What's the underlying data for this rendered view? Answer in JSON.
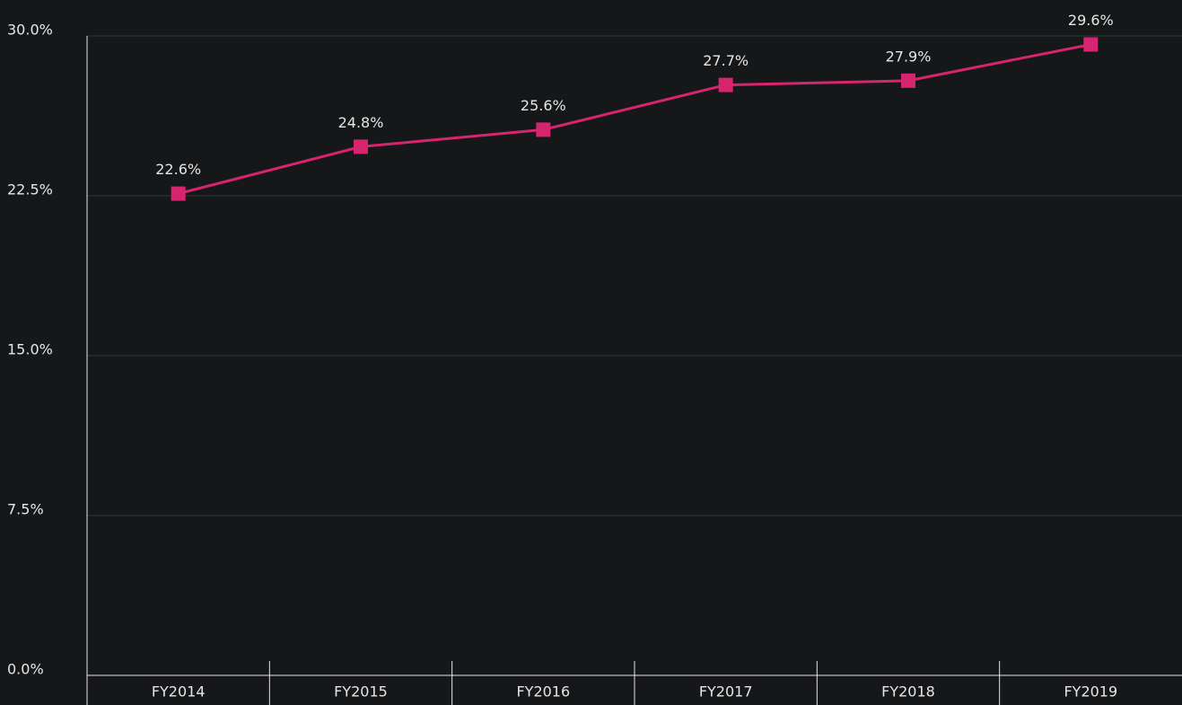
{
  "chart_data": {
    "type": "line",
    "categories": [
      "FY2014",
      "FY2015",
      "FY2016",
      "FY2017",
      "FY2018",
      "FY2019"
    ],
    "series": [
      {
        "color": "#d6246e",
        "values": [
          22.6,
          24.8,
          25.6,
          27.7,
          27.9,
          29.6
        ],
        "value_labels": [
          "22.6%",
          "24.8%",
          "25.6%",
          "27.7%",
          "27.9%",
          "29.6%"
        ]
      }
    ],
    "ylim": [
      0,
      30
    ],
    "yticks": [
      {
        "value": 0,
        "label": "0.0%"
      },
      {
        "value": 7.5,
        "label": "7.5%"
      },
      {
        "value": 15,
        "label": "15.0%"
      },
      {
        "value": 22.5,
        "label": "22.5%"
      },
      {
        "value": 30,
        "label": "30.0%"
      }
    ],
    "grid": true
  }
}
